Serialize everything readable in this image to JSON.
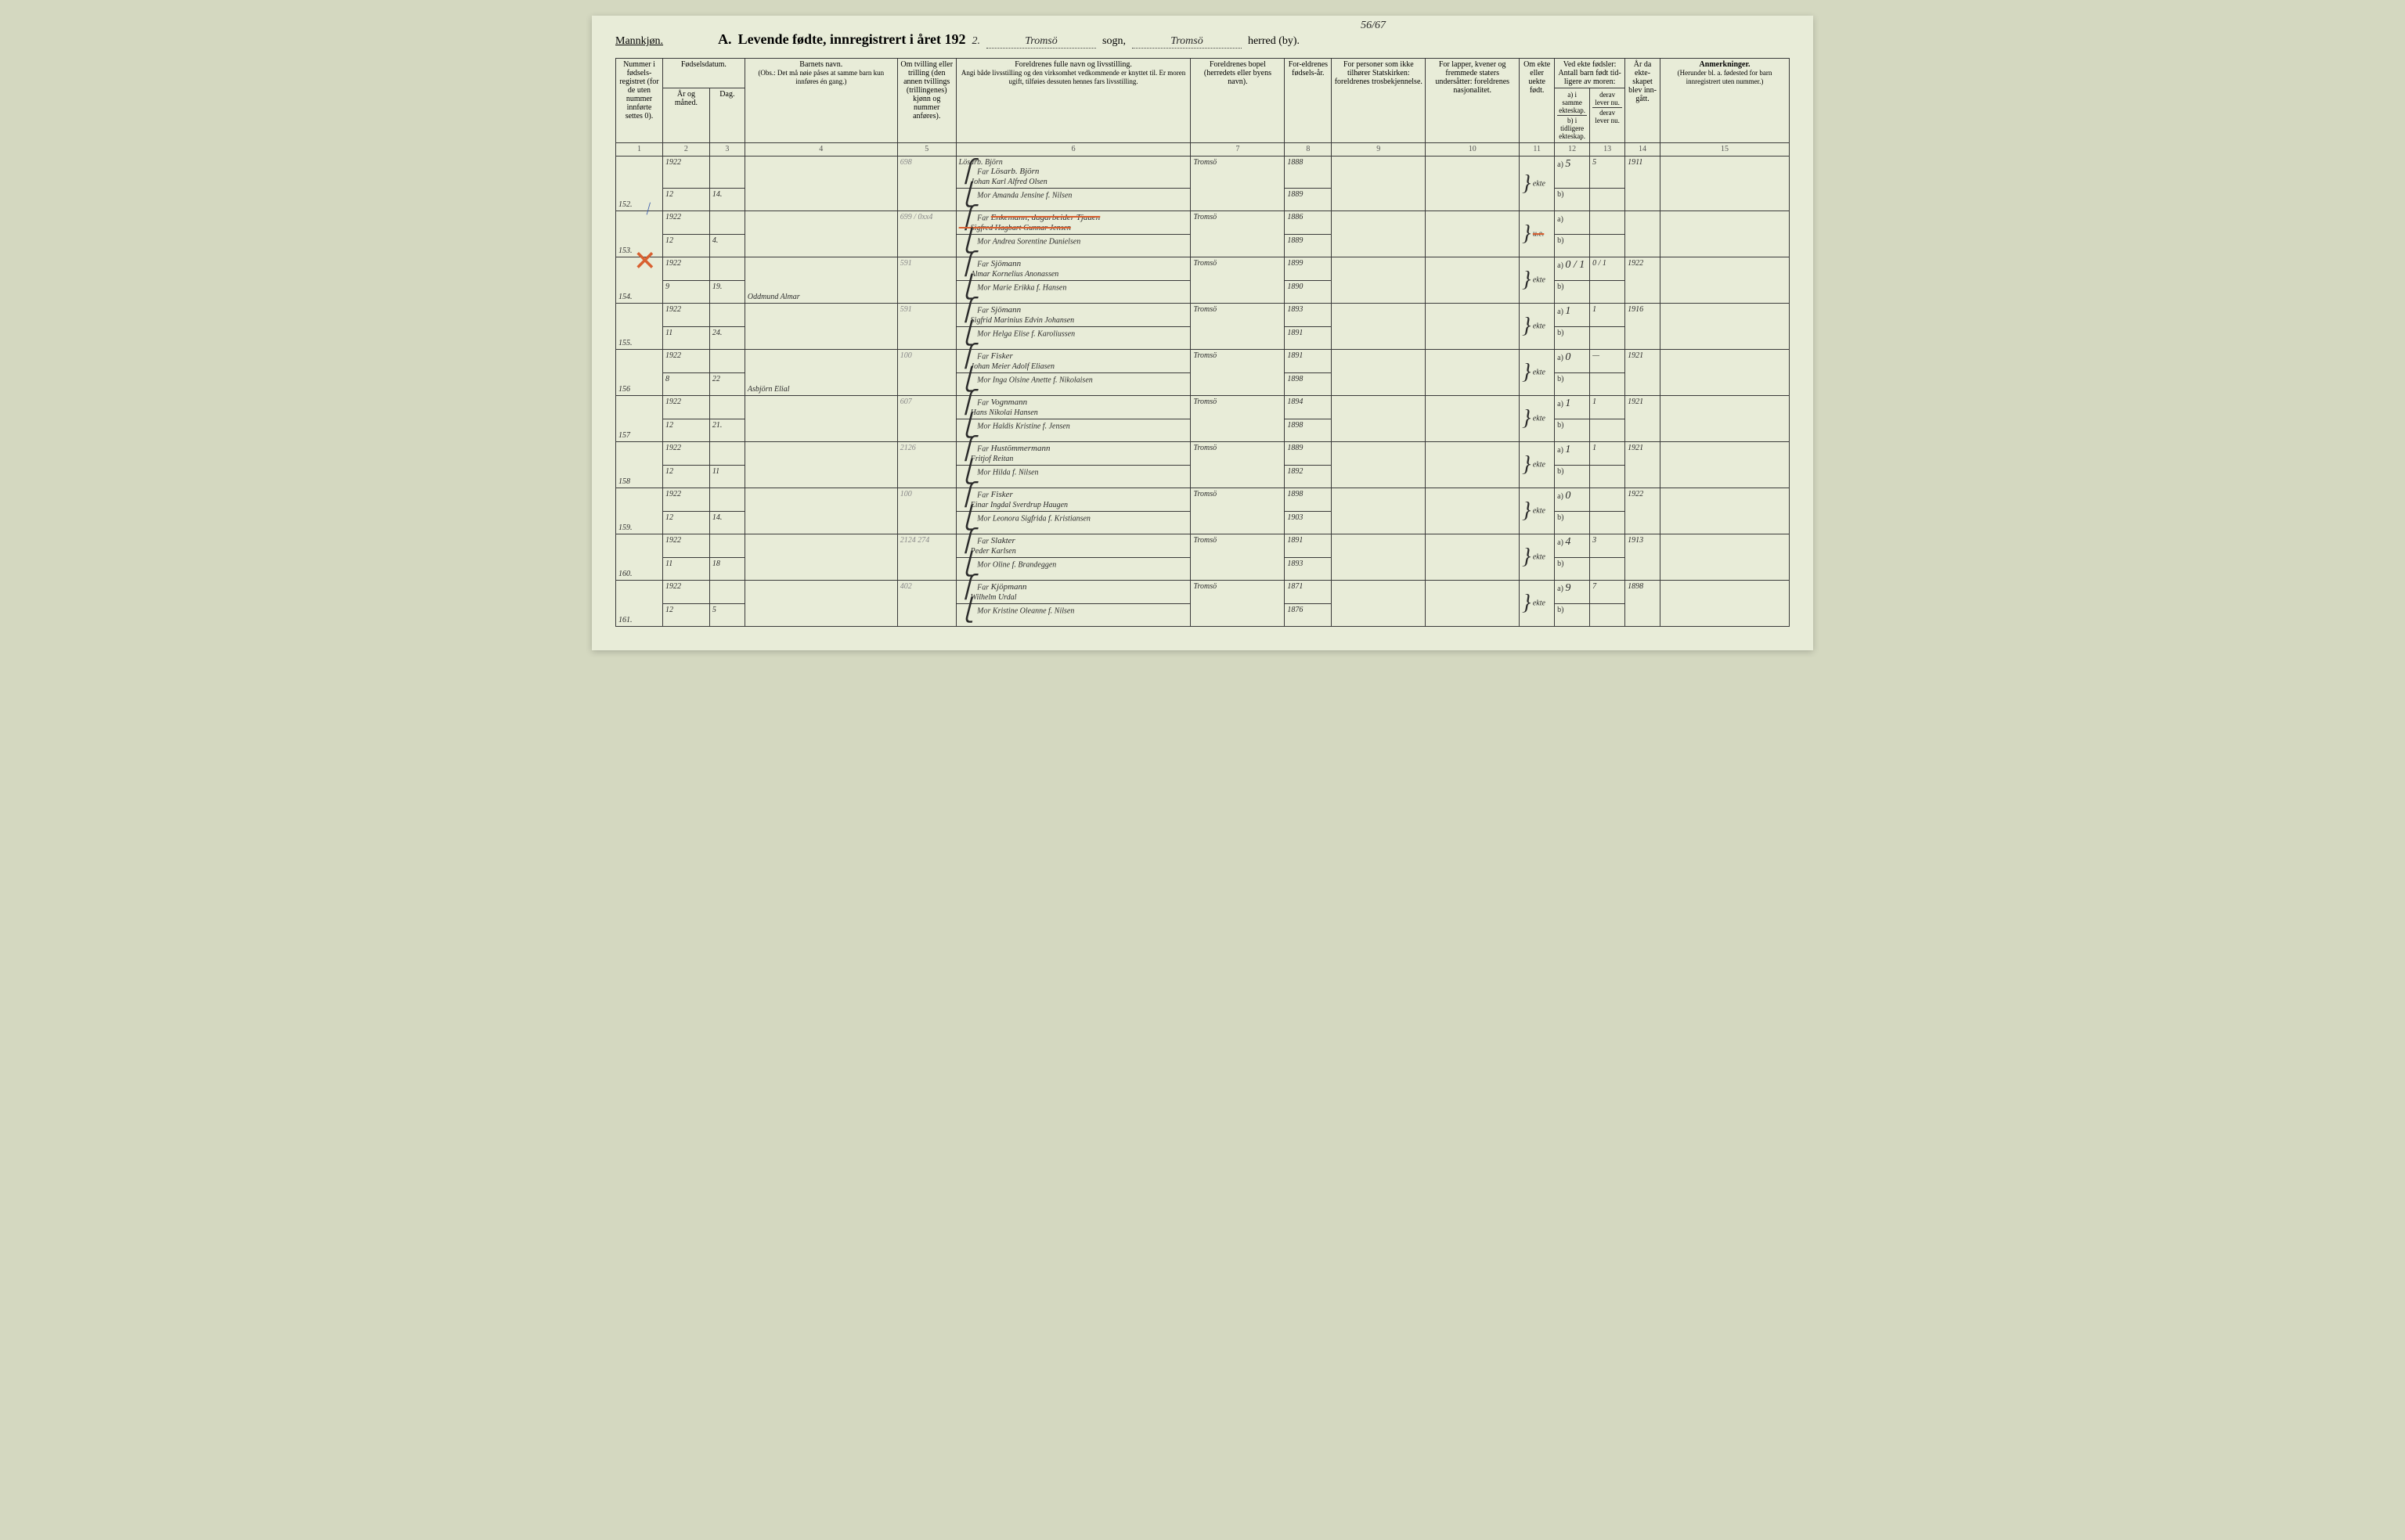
{
  "top_annotation": "56/67",
  "gender_label": "Mannkjøn.",
  "title_prefix": "A.",
  "title_main": "Levende fødte, innregistrert i året 192",
  "title_year_suffix": "2.",
  "sogn_word": "sogn,",
  "herred_word": "herred (by).",
  "sogn_value": "Tromsö",
  "herred_value": "Tromsö",
  "columns": {
    "c1": "Nummer i fødsels-registret (for de uten nummer innførte settes 0).",
    "c2": "Fødselsdatum.",
    "c2a": "År og måned.",
    "c2b": "Dag.",
    "c4": "Barnets navn.",
    "c4_note": "(Obs.: Det må nøie påses at samme barn kun innføres én gang.)",
    "c5": "Om tvilling eller trilling (den annen tvillings (trillingenes) kjønn og nummer anføres).",
    "c6": "Foreldrenes fulle navn og livsstilling.",
    "c6_note": "Angi både livsstilling og den virksomhet vedkommende er knyttet til. Er moren ugift, tilføies dessuten hennes fars livsstilling.",
    "c7": "Foreldrenes bopel (herredets eller byens navn).",
    "c8": "For-eldrenes fødsels-år.",
    "c9": "For personer som ikke tilhører Statskirken: foreldrenes trosbekjennelse.",
    "c10": "For lapper, kvener og fremmede staters undersåtter: foreldrenes nasjonalitet.",
    "c11": "Om ekte eller uekte født.",
    "c12": "Ved ekte fødsler: Antall barn født tid-ligere av moren:",
    "c12a": "a) i samme ekteskap.",
    "c12b": "b) i tidligere ekteskap.",
    "c13a": "derav lever nu.",
    "c13b": "derav lever nu.",
    "c14": "År da ekte-skapet blev inn-gått.",
    "c15": "Anmerkninger.",
    "c15_note": "(Herunder bl. a. fødested for barn innregistrert uten nummer.)"
  },
  "colnums": [
    "1",
    "2",
    "3",
    "4",
    "5",
    "6",
    "7",
    "8",
    "9",
    "10",
    "11",
    "12",
    "13",
    "14",
    "15"
  ],
  "far_label": "Far",
  "mor_label": "Mor",
  "a_label": "a)",
  "b_label": "b)",
  "rows": [
    {
      "num": "152.",
      "yr_mo": "1922 / 12",
      "day": "14.",
      "child": "",
      "twin": "698",
      "occ": "Lösarb. Björn",
      "far": "Johan Karl Alfred Olsen",
      "mor": "Amanda Jensine f. Nilsen",
      "bopel": "Tromsö",
      "far_yr": "1888",
      "mor_yr": "1889",
      "ekte": "ekte",
      "a": "5",
      "a2": "5",
      "yr14": "1911",
      "mark": "blue"
    },
    {
      "num": "153.",
      "yr_mo": "1922 / 12",
      "day": "4.",
      "child": "",
      "twin": "699 / 0xx4",
      "occ": "Enkemann, dagarbeider Tjauen",
      "far": "Sigfred Hagbart Gunnar Jensen",
      "mor": "Andrea Sorentine Danielsen",
      "bopel": "Tromsö",
      "far_yr": "1886",
      "mor_yr": "1889",
      "ekte": "u.e.",
      "a": "",
      "a2": "",
      "yr14": "",
      "mark": "x",
      "strike": true
    },
    {
      "num": "154.",
      "yr_mo": "1922 / 9",
      "day": "19.",
      "child": "Oddmund Almar",
      "twin": "591",
      "occ": "Sjömann",
      "far": "Almar Kornelius Anonassen",
      "mor": "Marie Erikka f. Hansen",
      "bopel": "Tromsö",
      "far_yr": "1899",
      "mor_yr": "1890",
      "ekte": "ekte",
      "a": "0 / 1",
      "a2": "0 / 1",
      "yr14": "1922"
    },
    {
      "num": "155.",
      "yr_mo": "1922 / 11",
      "day": "24.",
      "child": "",
      "twin": "591",
      "occ": "Sjömann",
      "far": "Sigfrid Marinius Edvin Johansen",
      "mor": "Helga Elise f. Karoliussen",
      "bopel": "Tromsö",
      "far_yr": "1893",
      "mor_yr": "1891",
      "ekte": "ekte",
      "a": "1",
      "a2": "1",
      "yr14": "1916"
    },
    {
      "num": "156",
      "yr_mo": "1922 / 8",
      "day": "22",
      "child": "Asbjörn Elial",
      "twin": "100",
      "occ": "Fisker",
      "far": "Johan Meier Adolf Eliasen",
      "mor": "Inga Olsine Anette f. Nikolaisen",
      "bopel": "Tromsö",
      "far_yr": "1891",
      "mor_yr": "1898",
      "ekte": "ekte",
      "a": "0",
      "a2": "—",
      "yr14": "1921"
    },
    {
      "num": "157",
      "yr_mo": "1922 / 12",
      "day": "21.",
      "child": "",
      "twin": "607",
      "occ": "Vognmann",
      "far": "Hans Nikolai Hansen",
      "mor": "Haldis Kristine f. Jensen",
      "bopel": "Tromsö",
      "far_yr": "1894",
      "mor_yr": "1898",
      "ekte": "ekte",
      "a": "1",
      "a2": "1",
      "yr14": "1921"
    },
    {
      "num": "158",
      "yr_mo": "1922 / 12",
      "day": "11",
      "child": "",
      "twin": "2126",
      "occ": "Hustömmermann",
      "far": "Fritjof Reitan",
      "mor": "Hilda f. Nilsen",
      "bopel": "Tromsö",
      "far_yr": "1889",
      "mor_yr": "1892",
      "ekte": "ekte",
      "a": "1",
      "a2": "1",
      "yr14": "1921"
    },
    {
      "num": "159.",
      "yr_mo": "1922 / 12",
      "day": "14.",
      "child": "",
      "twin": "100",
      "occ": "Fisker",
      "far": "Einar Ingdal Sverdrup Haugen",
      "mor": "Leonora Sigfrida f. Kristiansen",
      "bopel": "Tromsö",
      "far_yr": "1898",
      "mor_yr": "1903",
      "ekte": "ekte",
      "a": "0",
      "a2": "",
      "yr14": "1922"
    },
    {
      "num": "160.",
      "yr_mo": "1922 / 11",
      "day": "18",
      "child": "",
      "twin": "2124 274",
      "occ": "Slakter",
      "far": "Peder Karlsen",
      "mor": "Oline f. Brandeggen",
      "bopel": "Tromsö",
      "far_yr": "1891",
      "mor_yr": "1893",
      "ekte": "ekte",
      "a": "4",
      "a2": "3",
      "yr14": "1913"
    },
    {
      "num": "161.",
      "yr_mo": "1922 / 12",
      "day": "5",
      "child": "",
      "twin": "402",
      "occ": "Kjöpmann",
      "far": "Wilhelm Urdal",
      "mor": "Kristine Oleanne f. Nilsen",
      "bopel": "Tromsö",
      "far_yr": "1871",
      "mor_yr": "1876",
      "ekte": "ekte",
      "a": "9",
      "a2": "7",
      "yr14": "1898"
    }
  ]
}
